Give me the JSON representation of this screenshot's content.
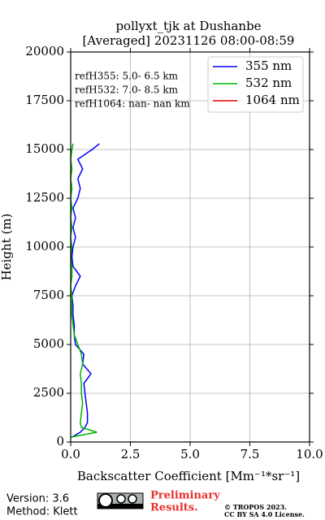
{
  "chart_data": {
    "type": "line",
    "title": "pollyxt_tjk at Dushanbe",
    "subtitle": "[Averaged] 20231126 08:00-08:59",
    "xlabel": "Backscatter Coefficient [Mm⁻¹*sr⁻¹]",
    "ylabel": "Height (m)",
    "annotations": [
      "refH355:  5.0- 6.5 km",
      "refH532:  7.0- 8.5 km",
      "refH1064:  nan- nan km"
    ],
    "y": [
      250,
      500,
      750,
      1000,
      1500,
      2000,
      2500,
      3000,
      3500,
      4000,
      4500,
      5000,
      5500,
      6000,
      6500,
      7000,
      7500,
      8000,
      8500,
      9000,
      9500,
      10000,
      10500,
      11000,
      11500,
      12000,
      12500,
      13000,
      13500,
      14000,
      14500,
      15000,
      15300
    ],
    "series": [
      {
        "name": "355 nm",
        "color": "#0000ff",
        "values": [
          0.05,
          0.4,
          0.6,
          0.7,
          0.7,
          0.65,
          0.6,
          0.55,
          0.85,
          0.5,
          0.55,
          0.2,
          0.15,
          0.15,
          0.1,
          0.1,
          0.05,
          0.2,
          0.4,
          0.1,
          0.05,
          0.1,
          0.2,
          0.1,
          0.2,
          0.1,
          0.3,
          0.4,
          0.3,
          0.5,
          0.3,
          0.9,
          1.2
        ]
      },
      {
        "name": "532 nm",
        "color": "#00b400",
        "values": [
          0.0,
          1.1,
          0.45,
          0.4,
          0.45,
          0.5,
          0.45,
          0.45,
          0.4,
          0.5,
          0.45,
          0.3,
          0.15,
          0.1,
          0.05,
          0.05,
          0.05,
          0.0,
          0.05,
          0.05,
          0.0,
          0.05,
          0.0,
          0.05,
          0.0,
          0.05,
          0.0,
          0.05,
          0.0,
          0.05,
          0.0,
          0.05,
          0.1
        ]
      },
      {
        "name": "1064 nm",
        "color": "#e60000",
        "values": [
          null,
          null,
          null,
          null,
          null,
          null,
          null,
          null,
          null,
          null,
          null,
          null,
          null,
          null,
          null,
          null,
          null,
          null,
          null,
          null,
          null,
          null,
          null,
          null,
          null,
          null,
          null,
          null,
          null,
          null,
          null,
          null,
          null
        ]
      }
    ],
    "xlim": [
      0,
      10
    ],
    "ylim": [
      0,
      20000
    ],
    "xticks": [
      {
        "value": 0,
        "label": "0.0"
      },
      2.5,
      {
        "value": 5,
        "label": "5.0"
      },
      7.5,
      {
        "value": 10,
        "label": "10.0"
      }
    ],
    "yticks": [
      0,
      2500,
      5000,
      7500,
      10000,
      12500,
      15000,
      17500,
      20000
    ],
    "grid": true,
    "legend": "upper right"
  },
  "footer": {
    "version": "Version: 3.6",
    "method": "Method: Klett",
    "notice": [
      "Preliminary",
      "Results."
    ],
    "copyright": [
      "© TROPOS 2023.",
      "CC BY SA 4.0 License."
    ]
  }
}
